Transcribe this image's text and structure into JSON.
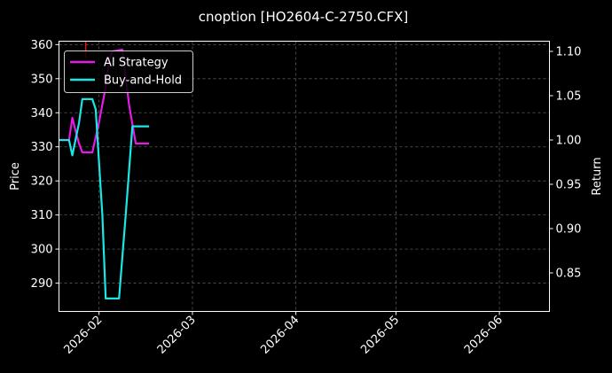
{
  "chart_data": {
    "type": "line",
    "title": "cnoption [HO2604-C-2750.CFX]",
    "xlabel": "",
    "ylabel": "Price",
    "y2label": "Return",
    "x_range": [
      "2026-01-20",
      "2026-06-16"
    ],
    "ylim": [
      281.7,
      361.0
    ],
    "y2lim": [
      0.8065,
      1.1115
    ],
    "x_ticks": [
      "2026-02",
      "2026-03",
      "2026-04",
      "2026-05",
      "2026-06"
    ],
    "y_ticks": [
      290,
      300,
      310,
      320,
      330,
      340,
      350,
      360
    ],
    "y2_ticks": [
      "0.85",
      "0.90",
      "0.95",
      "1.00",
      "1.05",
      "1.10"
    ],
    "grid": true,
    "legend_position": "top-left",
    "price_spike": {
      "x": "2026-01-28",
      "y": [
        356,
        361
      ]
    },
    "series": [
      {
        "name": "AI Strategy",
        "axis": "right",
        "color": "#e619e6",
        "points": [
          {
            "x": "2026-01-20",
            "y": 1.0
          },
          {
            "x": "2026-01-23",
            "y": 1.0
          },
          {
            "x": "2026-01-24",
            "y": 1.025
          },
          {
            "x": "2026-01-25",
            "y": 1.01
          },
          {
            "x": "2026-01-26",
            "y": 0.996
          },
          {
            "x": "2026-01-27",
            "y": 0.986
          },
          {
            "x": "2026-01-30",
            "y": 0.986
          },
          {
            "x": "2026-02-01",
            "y": 1.02
          },
          {
            "x": "2026-02-03",
            "y": 1.06
          },
          {
            "x": "2026-02-04",
            "y": 1.09
          },
          {
            "x": "2026-02-05",
            "y": 1.1
          },
          {
            "x": "2026-02-08",
            "y": 1.102
          },
          {
            "x": "2026-02-10",
            "y": 1.04
          },
          {
            "x": "2026-02-12",
            "y": 0.996
          },
          {
            "x": "2026-02-16",
            "y": 0.996
          }
        ]
      },
      {
        "name": "Buy-and-Hold",
        "axis": "left",
        "color": "#1ae6e6",
        "points": [
          {
            "x": "2026-01-20",
            "y": 332
          },
          {
            "x": "2026-01-23",
            "y": 332
          },
          {
            "x": "2026-01-24",
            "y": 327.5
          },
          {
            "x": "2026-01-26",
            "y": 337
          },
          {
            "x": "2026-01-27",
            "y": 344
          },
          {
            "x": "2026-01-30",
            "y": 344
          },
          {
            "x": "2026-01-31",
            "y": 341
          },
          {
            "x": "2026-02-02",
            "y": 310
          },
          {
            "x": "2026-02-03",
            "y": 285.5
          },
          {
            "x": "2026-02-07",
            "y": 285.5
          },
          {
            "x": "2026-02-09",
            "y": 310
          },
          {
            "x": "2026-02-11",
            "y": 336
          },
          {
            "x": "2026-02-16",
            "y": 336
          }
        ]
      }
    ]
  },
  "colors": {
    "background": "#000000",
    "axes_edge": "#ffffff",
    "grid": "#5a5a5a",
    "spike": "#e61919",
    "legend_bg": "#000000",
    "legend_edge": "#cccccc"
  }
}
